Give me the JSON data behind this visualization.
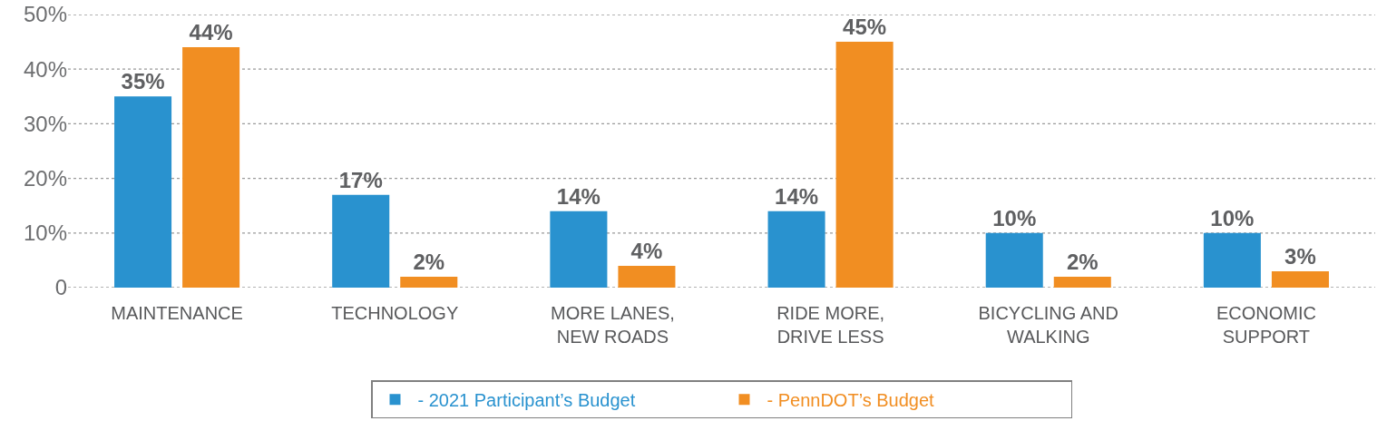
{
  "chart_data": {
    "type": "bar",
    "categories": [
      "MAINTENANCE",
      "TECHNOLOGY",
      "MORE LANES,\nNEW ROADS",
      "RIDE MORE,\nDRIVE LESS",
      "BICYCLING AND\nWALKING",
      "ECONOMIC\nSUPPORT"
    ],
    "series": [
      {
        "name": "- 2021 Participant’s Budget",
        "color": "#2992cf",
        "values": [
          35,
          17,
          14,
          14,
          10,
          10
        ],
        "value_labels": [
          "35%",
          "17%",
          "14%",
          "14%",
          "10%",
          "10%"
        ]
      },
      {
        "name": "- PennDOT’s Budget",
        "color": "#f18e22",
        "values": [
          44,
          2,
          4,
          45,
          2,
          3
        ],
        "value_labels": [
          "44%",
          "2%",
          "4%",
          "45%",
          "2%",
          "3%"
        ]
      }
    ],
    "ylim": [
      0,
      50
    ],
    "yticks": [
      0,
      {
        "value": 10,
        "label": "10%"
      },
      {
        "value": 20,
        "label": "20%"
      },
      {
        "value": 30,
        "label": "30%"
      },
      {
        "value": 40,
        "label": "40%"
      },
      {
        "value": 50,
        "label": "50%"
      }
    ],
    "grid": "y",
    "legend": "bottom"
  }
}
